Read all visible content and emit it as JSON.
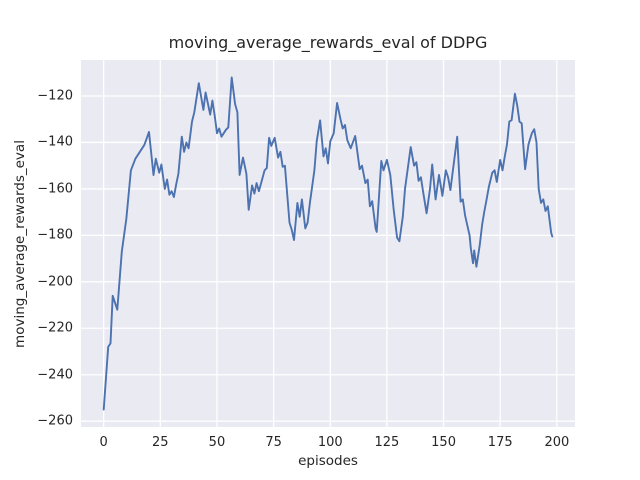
{
  "chart_data": {
    "type": "line",
    "title": "moving_average_rewards_eval of DDPG",
    "xlabel": "episodes",
    "ylabel": "moving_average_rewards_eval",
    "x_ticks": [
      0,
      25,
      50,
      75,
      100,
      125,
      150,
      175,
      200
    ],
    "y_ticks": [
      -260,
      -240,
      -220,
      -200,
      -180,
      -160,
      -140,
      -120
    ],
    "xlim": [
      -10,
      208
    ],
    "ylim": [
      -262.5,
      -104.5
    ],
    "grid": true,
    "legend": "none",
    "colors": {
      "line": "#4C72B0",
      "panel_background": "#EAEAF2",
      "grid": "#FFFFFF",
      "text": "#262626",
      "figure_background": "#FFFFFF"
    },
    "series": [
      {
        "name": "moving_average_rewards_eval",
        "x": [
          0,
          2,
          3,
          4,
          6,
          8,
          10,
          12,
          14,
          16,
          18,
          20,
          22,
          23,
          24.5,
          25.5,
          27,
          28,
          29,
          30,
          31,
          32,
          33,
          34.5,
          35.5,
          36.5,
          37.5,
          39,
          40,
          42,
          44,
          45,
          47,
          48,
          49,
          50,
          51,
          52,
          54,
          55,
          56.5,
          58,
          59,
          60,
          61.5,
          63,
          64,
          65.5,
          66.5,
          67.5,
          68.5,
          71,
          72,
          73,
          74,
          75.5,
          77,
          78,
          79,
          80,
          82,
          83,
          84,
          85.5,
          86.5,
          87.5,
          89,
          90,
          91,
          93,
          94,
          95.5,
          97,
          98,
          99,
          100,
          101.5,
          103,
          104.5,
          105.5,
          106.5,
          107.5,
          109,
          111,
          113,
          114,
          115.5,
          116.5,
          117.5,
          118.5,
          120,
          120.5,
          122.5,
          123.5,
          125,
          126.5,
          128,
          129.5,
          130.5,
          132,
          133,
          135.5,
          137,
          138,
          139,
          140,
          141,
          142.5,
          144,
          145,
          146.5,
          148,
          149.5,
          151,
          152,
          153,
          156,
          157.5,
          158.5,
          159.5,
          161.5,
          162,
          163,
          163.5,
          164.5,
          166,
          167,
          168,
          169,
          170,
          171.5,
          172.5,
          173.5,
          175,
          176,
          177,
          178,
          179,
          180,
          181.5,
          182.5,
          183.5,
          184.5,
          186,
          187.5,
          189,
          190,
          191,
          192,
          193,
          194,
          195,
          196,
          197.5,
          198
        ],
        "y": [
          -255,
          -228,
          -226.5,
          -206,
          -212,
          -187,
          -173,
          -152,
          -147,
          -144,
          -141,
          -135.5,
          -154,
          -147,
          -153,
          -149.5,
          -160,
          -156,
          -162.5,
          -161,
          -163.5,
          -158,
          -153.5,
          -137.5,
          -144,
          -140,
          -142.5,
          -131,
          -127,
          -114.5,
          -126,
          -118.5,
          -128,
          -122,
          -128.5,
          -136,
          -134,
          -137.5,
          -134.5,
          -133.5,
          -112,
          -123.5,
          -127,
          -154,
          -146.5,
          -153.5,
          -169,
          -158.5,
          -162,
          -157.5,
          -161,
          -152,
          -151,
          -138,
          -141.5,
          -138,
          -146.5,
          -144,
          -150.5,
          -150,
          -174.5,
          -177.5,
          -182,
          -166,
          -172,
          -164.5,
          -177,
          -174.5,
          -166,
          -152,
          -139.5,
          -130.5,
          -146,
          -142.5,
          -149,
          -139.5,
          -136,
          -123,
          -130,
          -134,
          -132.5,
          -139,
          -142.5,
          -137.2,
          -151.5,
          -150,
          -157.5,
          -156,
          -167.5,
          -165.3,
          -177,
          -178.5,
          -148,
          -152,
          -147.5,
          -154,
          -169,
          -181,
          -182.5,
          -172,
          -160,
          -142,
          -150,
          -148.5,
          -156.5,
          -155,
          -161.5,
          -170.5,
          -160,
          -149.5,
          -164.5,
          -154,
          -163,
          -152,
          -155,
          -160.5,
          -137.5,
          -165.5,
          -164.5,
          -171.5,
          -180,
          -185.5,
          -192,
          -186.5,
          -193.5,
          -184,
          -175.5,
          -169.5,
          -164.5,
          -159,
          -153,
          -152,
          -157,
          -147.5,
          -152,
          -146,
          -140.8,
          -131,
          -130.4,
          -119,
          -124,
          -131,
          -131.8,
          -151.5,
          -140.8,
          -136,
          -134.3,
          -140,
          -160,
          -166,
          -164.5,
          -169.5,
          -167.5,
          -179,
          -180.5
        ]
      }
    ]
  }
}
